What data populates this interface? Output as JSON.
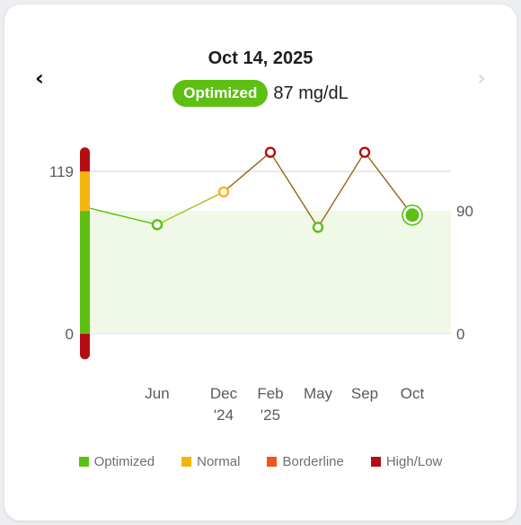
{
  "header": {
    "date": "Oct 14, 2025",
    "status_label": "Optimized",
    "status_color": "#5cbf12",
    "reading": "87 mg/dL"
  },
  "nav": {
    "prev_icon": "chevron-left-icon",
    "next_icon": "chevron-right-icon"
  },
  "colors": {
    "optimized": "#5cbf12",
    "normal": "#f5b50f",
    "borderline": "#f2541b",
    "high_low": "#b50d14",
    "optimized_band": "#f0f8e7",
    "reference_line": "#d8dbe0"
  },
  "legend": [
    {
      "label": "Optimized",
      "color": "#5cbf12"
    },
    {
      "label": "Normal",
      "color": "#f5b50f"
    },
    {
      "label": "Borderline",
      "color": "#f2541b"
    },
    {
      "label": "High/Low",
      "color": "#b50d14"
    }
  ],
  "chart_data": {
    "type": "line",
    "y_left_ticks": [
      {
        "label": "119",
        "value": 119
      },
      {
        "label": "0",
        "value": 0
      }
    ],
    "y_right_ticks": [
      {
        "label": "90",
        "value": 90
      },
      {
        "label": "0",
        "value": 0
      }
    ],
    "scale_bands": [
      {
        "from": 119,
        "to": 133,
        "status": "high_low"
      },
      {
        "from": 90,
        "to": 119,
        "status": "normal"
      },
      {
        "from": 0,
        "to": 90,
        "status": "optimized"
      },
      {
        "from": -15,
        "to": 0,
        "status": "high_low"
      }
    ],
    "optimized_range": [
      0,
      90
    ],
    "reference_line": 119,
    "x_labels": [
      {
        "line1": "Jun",
        "line2": ""
      },
      {
        "line1": "Dec",
        "line2": "'24"
      },
      {
        "line1": "Feb",
        "line2": "'25"
      },
      {
        "line1": "May",
        "line2": ""
      },
      {
        "line1": "Sep",
        "line2": ""
      },
      {
        "line1": "Oct",
        "line2": ""
      }
    ],
    "points": [
      {
        "value": 80,
        "status": "optimized"
      },
      {
        "value": 104,
        "status": "normal"
      },
      {
        "value": 133,
        "status": "high_low"
      },
      {
        "value": 78,
        "status": "optimized"
      },
      {
        "value": 133,
        "status": "high_low"
      },
      {
        "value": 87,
        "status": "optimized",
        "selected": true
      }
    ],
    "start_value": 92
  }
}
